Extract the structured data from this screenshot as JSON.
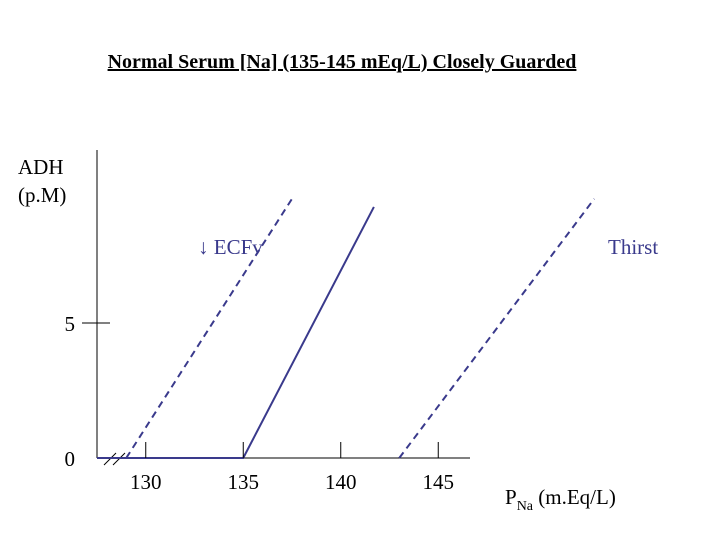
{
  "chart_data": {
    "type": "line",
    "title": "Normal Serum [Na] (135-145 mEq/L) Closely Guarded",
    "ylabel_line1": "ADH",
    "ylabel_line2": "(p.M)",
    "xlabel_main": "P",
    "xlabel_sub": "Na",
    "xlabel_units": " (m.Eq/L)",
    "x_ticks": [
      130,
      135,
      140,
      145
    ],
    "y_ticks": [
      0,
      5
    ],
    "xlim": [
      127.5,
      150
    ],
    "ylim": [
      0,
      10.5
    ],
    "axis_break": true,
    "annotations": {
      "ecfv": "↓ ECFv",
      "thirst": "Thirst"
    },
    "series": [
      {
        "style": "dashed",
        "points": [
          [
            129,
            0
          ],
          [
            137.5,
            9.6
          ]
        ]
      },
      {
        "style": "solid",
        "points": [
          [
            127.5,
            0
          ],
          [
            135,
            0
          ],
          [
            141.7,
            9.3
          ]
        ]
      },
      {
        "style": "dashed",
        "points": [
          [
            143,
            0
          ],
          [
            153,
            9.6
          ]
        ]
      }
    ],
    "colors": {
      "line": "#3a3a8c",
      "axis": "#000000"
    }
  }
}
